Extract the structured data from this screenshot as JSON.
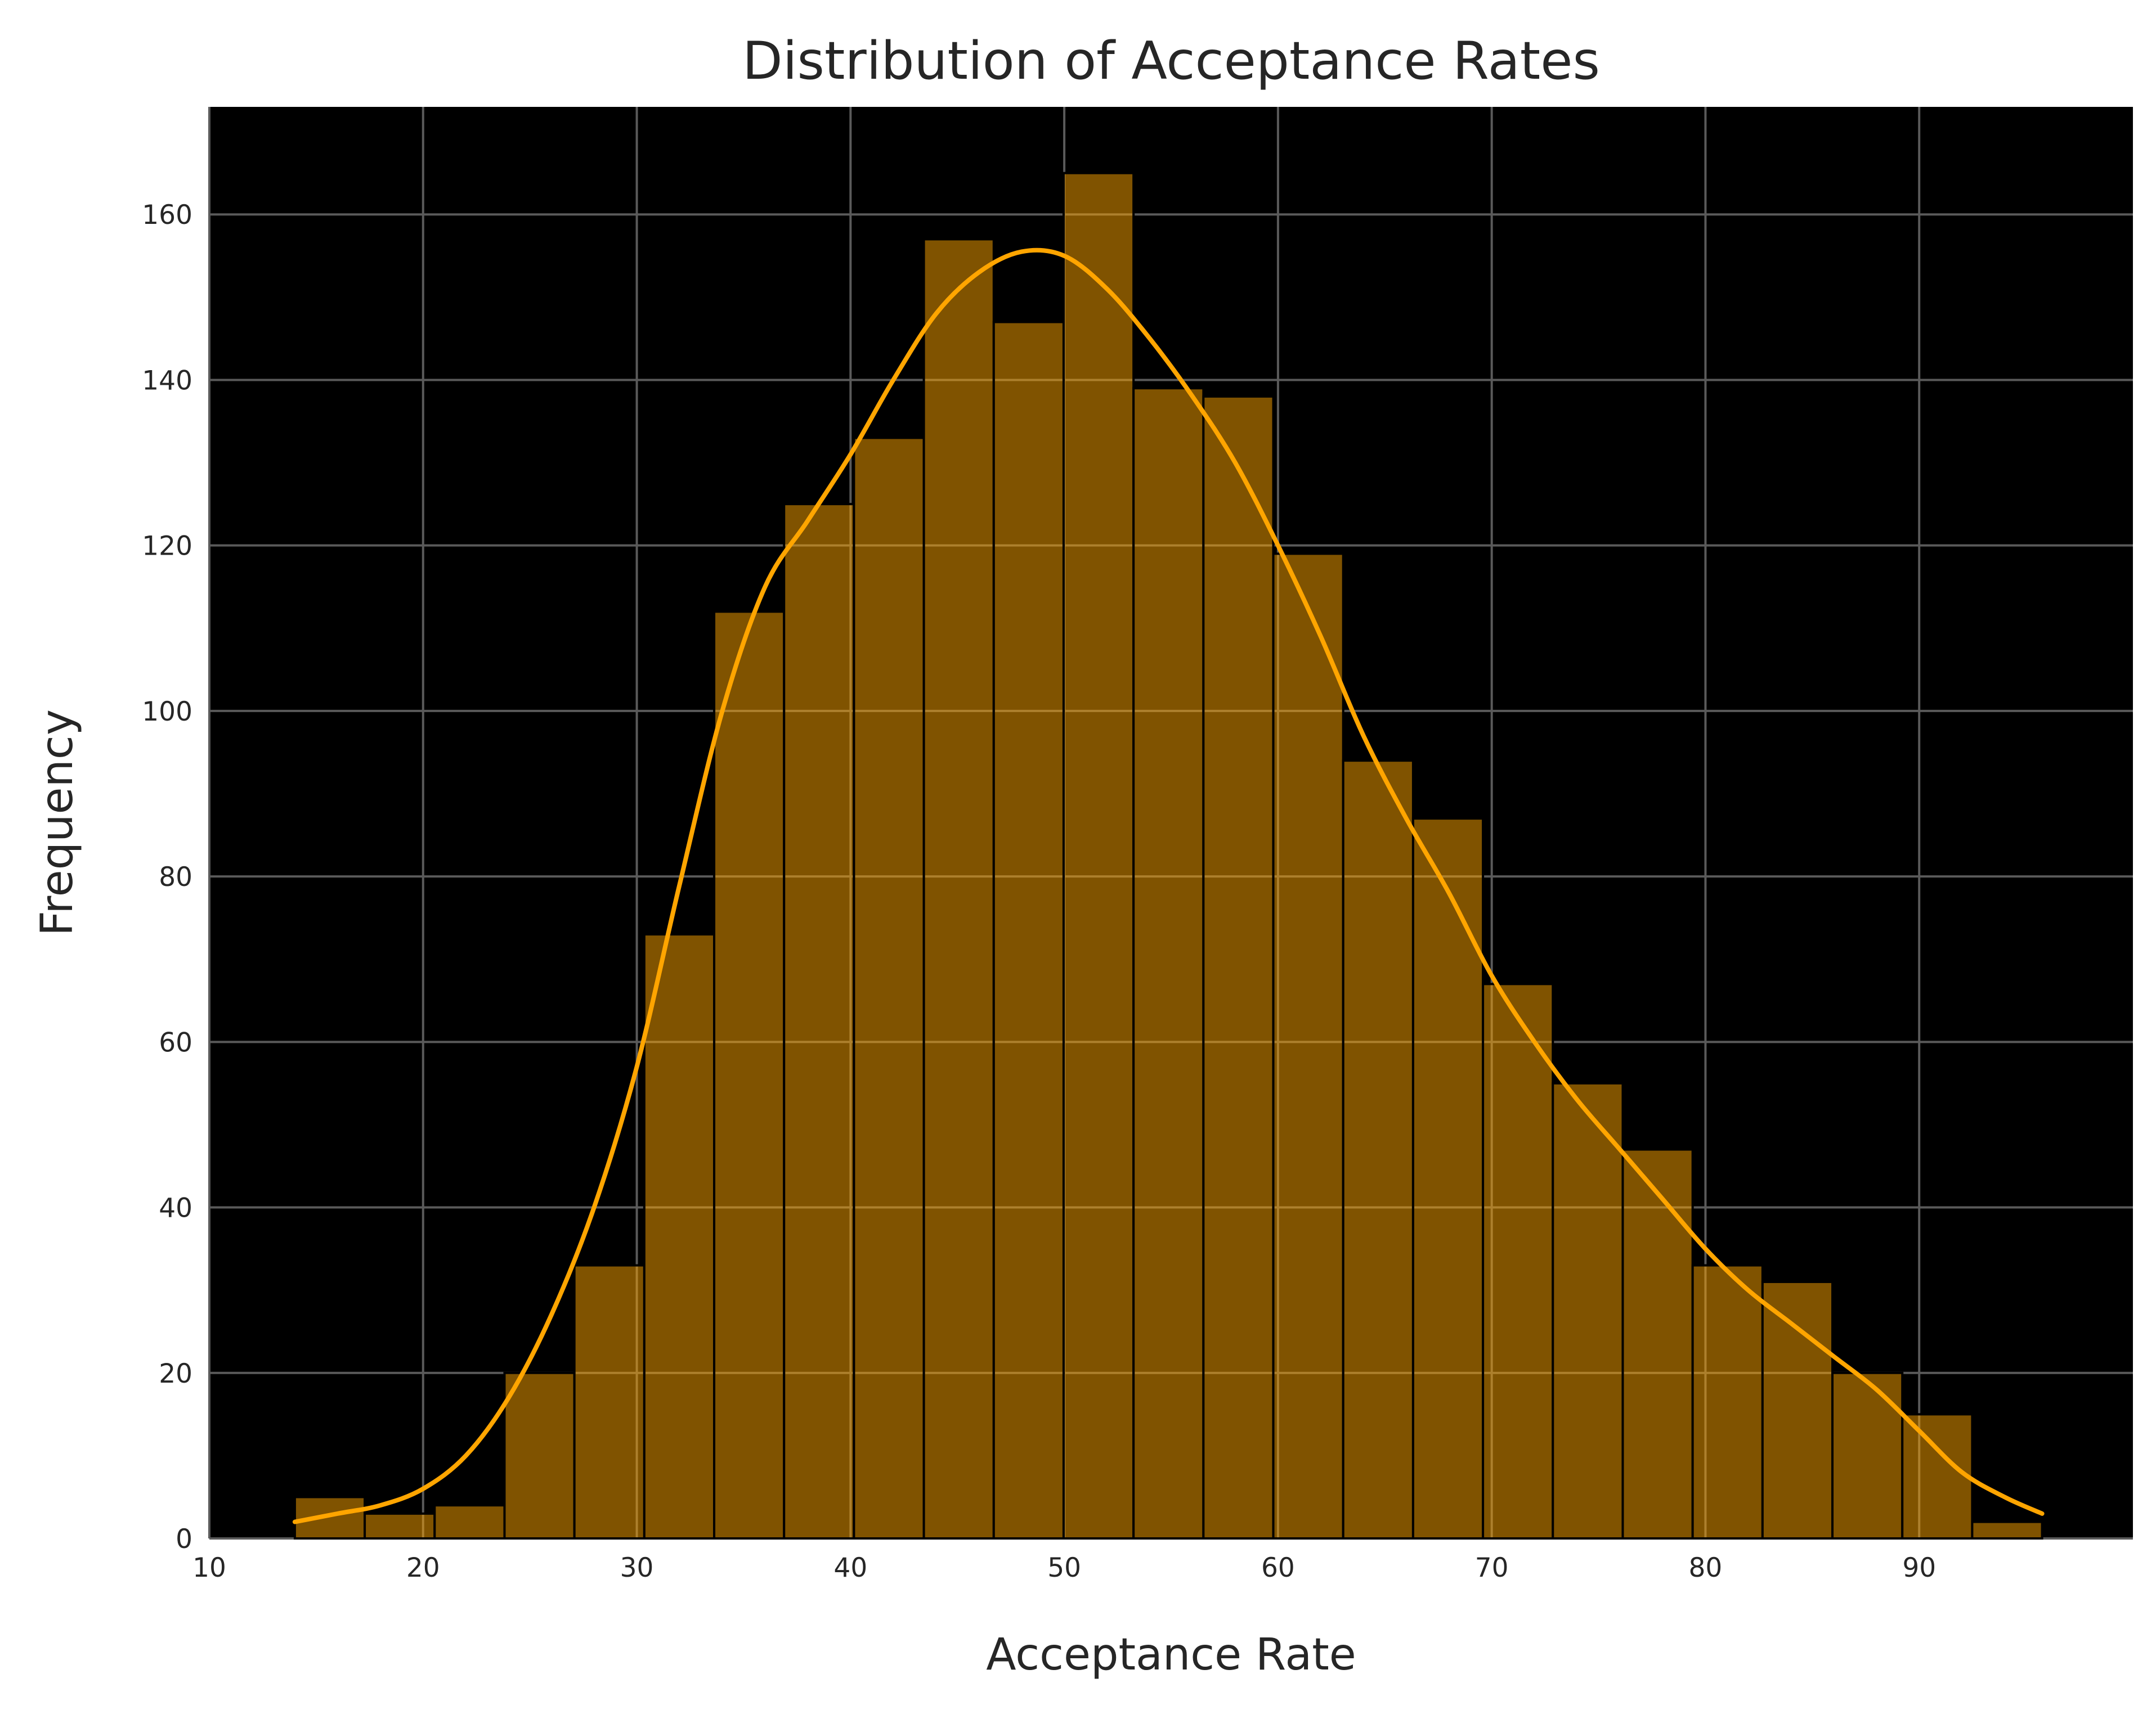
{
  "chart_data": {
    "type": "bar",
    "subtype": "histogram",
    "title": "Distribution of Acceptance Rates",
    "xlabel": "Acceptance Rate",
    "ylabel": "Frequency",
    "xlim": [
      10,
      100
    ],
    "ylim": [
      0,
      173
    ],
    "xticks": [
      10,
      20,
      30,
      40,
      50,
      60,
      70,
      80,
      90
    ],
    "yticks": [
      0,
      20,
      40,
      60,
      80,
      100,
      120,
      140,
      160
    ],
    "grid": true,
    "background": "#000000",
    "bar_color": "#ffa500",
    "bar_opacity": 0.5,
    "kde_color": "#ffa500",
    "bin_edges": [
      14.0,
      17.27,
      20.54,
      23.81,
      27.08,
      30.35,
      33.62,
      36.89,
      40.16,
      43.43,
      46.7,
      49.97,
      53.24,
      56.51,
      59.78,
      63.05,
      66.32,
      69.59,
      72.86,
      76.13,
      79.4,
      82.67,
      85.94,
      89.21,
      92.48,
      95.75
    ],
    "counts": [
      5,
      3,
      4,
      20,
      33,
      73,
      112,
      125,
      133,
      157,
      147,
      165,
      139,
      138,
      119,
      94,
      87,
      67,
      55,
      47,
      33,
      31,
      20,
      15,
      2
    ],
    "kde": {
      "x": [
        14,
        16,
        18,
        20,
        22,
        24,
        26,
        28,
        30,
        32,
        34,
        36,
        38,
        40,
        42,
        44,
        46,
        48,
        50,
        52,
        54,
        56,
        58,
        60,
        62,
        64,
        66,
        68,
        70,
        72,
        74,
        76,
        78,
        80,
        82,
        84,
        86,
        88,
        90,
        92,
        94,
        95.75
      ],
      "y": [
        2,
        3,
        4,
        6,
        10,
        17,
        27,
        40,
        57,
        79,
        100,
        115,
        123,
        131,
        140,
        148,
        153,
        155.5,
        155,
        151,
        145,
        138,
        130,
        120,
        109,
        97,
        87,
        78,
        68,
        60,
        53,
        47,
        41,
        35,
        30,
        26,
        22,
        18,
        13,
        8,
        5,
        3
      ]
    }
  }
}
